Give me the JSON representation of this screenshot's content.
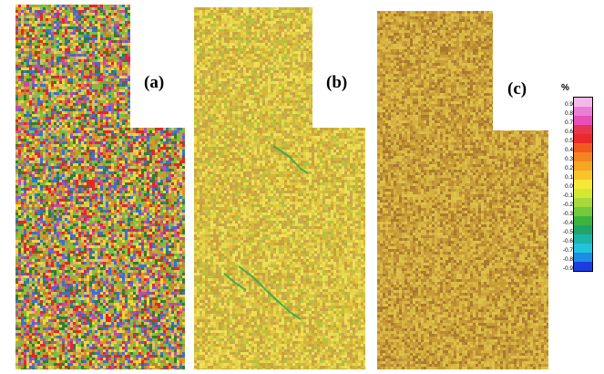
{
  "panels": [
    {
      "label": "(a)",
      "palette": [
        "#e8242b",
        "#6cc24a",
        "#f2d53c",
        "#b58a2c",
        "#2e7d32",
        "#e58f2a",
        "#c04da8",
        "#3b6fd8",
        "#9fb83a",
        "#d4c26a"
      ],
      "background": "#a89a3e"
    },
    {
      "label": "(b)",
      "palette": [
        "#e2cc3e",
        "#e8d84e",
        "#d4b53a",
        "#c9a23a",
        "#f0df5a",
        "#b7c13e",
        "#d9c247",
        "#c8a84a"
      ],
      "background": "#dcc444"
    },
    {
      "label": "(c)",
      "palette": [
        "#c79a36",
        "#d6b13e",
        "#bb8a33",
        "#e0c14a",
        "#c9a03c",
        "#a97a2e",
        "#d8b846"
      ],
      "background": "#c9a13c"
    }
  ],
  "legend": {
    "unit": "%",
    "labels": [
      "0.9",
      "0.8",
      "0.7",
      "0.6",
      "0.5",
      "0.4",
      "0.3",
      "0.2",
      "0.1",
      "0.0",
      "-0.1",
      "-0.2",
      "-0.3",
      "-0.4",
      "-0.5",
      "-0.6",
      "-0.7",
      "-0.8",
      "-0.9"
    ],
    "colors": [
      "#f4b9e8",
      "#e97fd4",
      "#e84fb8",
      "#e8364e",
      "#ea2a2a",
      "#f05a1e",
      "#f48420",
      "#f5a623",
      "#f7c52a",
      "#f6e83a",
      "#d4e832",
      "#a8d83c",
      "#74c83c",
      "#3cb43c",
      "#20a468",
      "#1bb4a6",
      "#22c4dc",
      "#1c8ce4",
      "#1c3ce0"
    ]
  }
}
